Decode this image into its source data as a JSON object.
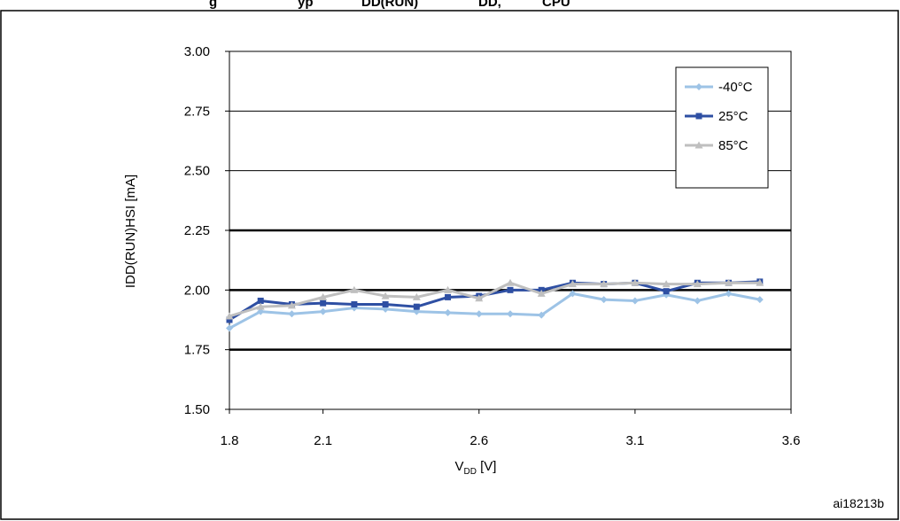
{
  "chart_data": {
    "type": "line",
    "title": "",
    "xlabel": "V",
    "xlabel_sub": "DD",
    "xlabel_suffix": " [V]",
    "ylabel": "IDD(RUN)HSI [mA]",
    "xlim": [
      1.8,
      3.6
    ],
    "ylim": [
      1.5,
      3.0
    ],
    "x_ticks": [
      1.8,
      2.1,
      2.6,
      3.1,
      3.6
    ],
    "x_tick_labels": [
      "1.8",
      "2.1",
      "2.6",
      "3.1",
      "3.6"
    ],
    "y_ticks": [
      1.5,
      1.75,
      2.0,
      2.25,
      2.5,
      2.75,
      3.0
    ],
    "y_tick_labels": [
      "1.50",
      "1.75",
      "2.00",
      "2.25",
      "2.50",
      "2.75",
      "3.00"
    ],
    "bold_gridlines": [
      1.75,
      2.0,
      2.25
    ],
    "grid": true,
    "legend_position": "top-right",
    "x": [
      1.8,
      1.9,
      2.0,
      2.1,
      2.2,
      2.3,
      2.4,
      2.5,
      2.6,
      2.7,
      2.8,
      2.9,
      3.0,
      3.1,
      3.2,
      3.3,
      3.4,
      3.5
    ],
    "series": [
      {
        "name": "-40°C",
        "color": "#9dc3e6",
        "marker": "diamond",
        "values": [
          1.84,
          1.91,
          1.9,
          1.91,
          1.925,
          1.92,
          1.91,
          1.905,
          1.9,
          1.9,
          1.895,
          1.985,
          1.96,
          1.955,
          1.98,
          1.955,
          1.985,
          1.96
        ]
      },
      {
        "name": "25°C",
        "color": "#2e4fa3",
        "marker": "square",
        "values": [
          1.875,
          1.955,
          1.94,
          1.945,
          1.94,
          1.94,
          1.93,
          1.97,
          1.975,
          2.0,
          2.0,
          2.03,
          2.025,
          2.03,
          1.995,
          2.03,
          2.03,
          2.035
        ]
      },
      {
        "name": "85°C",
        "color": "#bfbfbf",
        "marker": "triangle",
        "values": [
          1.89,
          1.93,
          1.935,
          1.97,
          2.0,
          1.975,
          1.97,
          2.0,
          1.965,
          2.03,
          1.985,
          2.025,
          2.025,
          2.03,
          2.025,
          2.025,
          2.03,
          2.03
        ]
      }
    ]
  },
  "header": {
    "title_fragments": [
      "g",
      "yp",
      "DD(RUN)",
      "DD,",
      "CPU"
    ]
  },
  "figure_id": "ai18213b"
}
